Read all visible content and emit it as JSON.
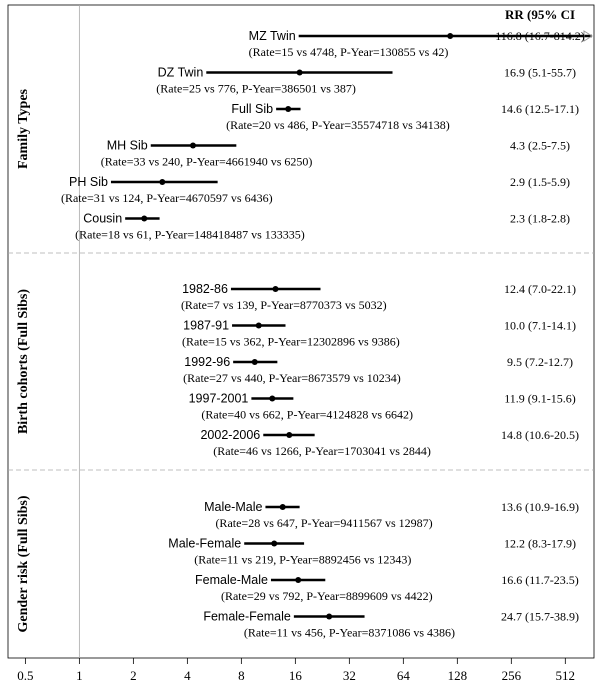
{
  "chart_data": {
    "type": "forest",
    "x_scale": "log2",
    "xlim": [
      0.4,
      740
    ],
    "x_ticks": [
      "0.5",
      "1",
      "2",
      "4",
      "8",
      "16",
      "32",
      "64",
      "128",
      "256",
      "512"
    ],
    "x_tick_values": [
      0.5,
      1,
      2,
      4,
      8,
      16,
      32,
      64,
      128,
      256,
      512
    ],
    "reference_line": 1,
    "header": "RR  (95% CI",
    "groups": [
      {
        "label": "Family Types",
        "rows": [
          {
            "label": "MZ Twin",
            "rr": 116.8,
            "lo": 16.7,
            "hi": 814.2,
            "rr_text": "116.8 (16.7-814.2)",
            "stats": "(Rate=15 vs 4748, P-Year=130855 vs 42)",
            "arrow": true
          },
          {
            "label": "DZ Twin",
            "rr": 16.9,
            "lo": 5.1,
            "hi": 55.7,
            "rr_text": "16.9 (5.1-55.7)",
            "stats": "(Rate=25 vs 776, P-Year=386501 vs 387)"
          },
          {
            "label": "Full Sib",
            "rr": 14.6,
            "lo": 12.5,
            "hi": 17.1,
            "rr_text": "14.6 (12.5-17.1)",
            "stats": "(Rate=20 vs 486, P-Year=35574718 vs 34138)"
          },
          {
            "label": "MH Sib",
            "rr": 4.3,
            "lo": 2.5,
            "hi": 7.5,
            "rr_text": "4.3 (2.5-7.5)",
            "stats": "(Rate=33 vs 240, P-Year=4661940 vs 6250)"
          },
          {
            "label": "PH Sib",
            "rr": 2.9,
            "lo": 1.5,
            "hi": 5.9,
            "rr_text": "2.9 (1.5-5.9)",
            "stats": "(Rate=31 vs 124, P-Year=4670597 vs 6436)"
          },
          {
            "label": "Cousin",
            "rr": 2.3,
            "lo": 1.8,
            "hi": 2.8,
            "rr_text": "2.3 (1.8-2.8)",
            "stats": "(Rate=18 vs 61, P-Year=148418487 vs 133335)"
          }
        ]
      },
      {
        "label": "Birth cohorts (Full Sibs)",
        "rows": [
          {
            "label": "1982-86",
            "rr": 12.4,
            "lo": 7.0,
            "hi": 22.1,
            "rr_text": "12.4 (7.0-22.1)",
            "stats": "(Rate=7 vs 139, P-Year=8770373 vs 5032)"
          },
          {
            "label": "1987-91",
            "rr": 10.0,
            "lo": 7.1,
            "hi": 14.1,
            "rr_text": "10.0 (7.1-14.1)",
            "stats": "(Rate=15 vs 362, P-Year=12302896 vs 9386)"
          },
          {
            "label": "1992-96",
            "rr": 9.5,
            "lo": 7.2,
            "hi": 12.7,
            "rr_text": "9.5 (7.2-12.7)",
            "stats": "(Rate=27 vs 440, P-Year=8673579 vs 10234)"
          },
          {
            "label": "1997-2001",
            "rr": 11.9,
            "lo": 9.1,
            "hi": 15.6,
            "rr_text": "11.9 (9.1-15.6)",
            "stats": "(Rate=40 vs 662, P-Year=4124828 vs 6642)"
          },
          {
            "label": "2002-2006",
            "rr": 14.8,
            "lo": 10.6,
            "hi": 20.5,
            "rr_text": "14.8 (10.6-20.5)",
            "stats": "(Rate=46 vs 1266, P-Year=1703041 vs 2844)"
          }
        ]
      },
      {
        "label": "Gender risk (Full Sibs)",
        "rows": [
          {
            "label": "Male-Male",
            "rr": 13.6,
            "lo": 10.9,
            "hi": 16.9,
            "rr_text": "13.6 (10.9-16.9)",
            "stats": "(Rate=28 vs 647, P-Year=9411567 vs 12987)"
          },
          {
            "label": "Male-Female",
            "rr": 12.2,
            "lo": 8.3,
            "hi": 17.9,
            "rr_text": "12.2 (8.3-17.9)",
            "stats": "(Rate=11 vs 219, P-Year=8892456 vs 12343)"
          },
          {
            "label": "Female-Male",
            "rr": 16.6,
            "lo": 11.7,
            "hi": 23.5,
            "rr_text": "16.6 (11.7-23.5)",
            "stats": "(Rate=29 vs 792, P-Year=8899609 vs 4422)"
          },
          {
            "label": "Female-Female",
            "rr": 24.7,
            "lo": 15.7,
            "hi": 38.9,
            "rr_text": "24.7 (15.7-38.9)",
            "stats": "(Rate=11 vs 456, P-Year=8371086 vs 4386)"
          }
        ]
      }
    ]
  }
}
